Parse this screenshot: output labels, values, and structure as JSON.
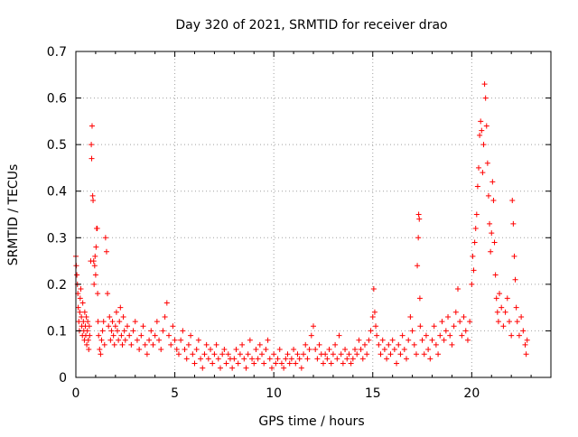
{
  "chart_data": {
    "type": "scatter",
    "title": "Day 320 of 2021, SRMTID for receiver drao",
    "xlabel": "GPS time / hours",
    "ylabel": "SRMTID / TECUs",
    "xlim": [
      0,
      24
    ],
    "ylim": [
      0,
      0.7
    ],
    "x_ticks": [
      0,
      5,
      10,
      15,
      20
    ],
    "x_tick_labels": [
      "0",
      "5",
      "10",
      "15",
      "20"
    ],
    "y_ticks": [
      0,
      0.1,
      0.2,
      0.3,
      0.4,
      0.5,
      0.6,
      0.7
    ],
    "y_tick_labels": [
      "0",
      "0.1",
      "0.2",
      "0.3",
      "0.4",
      "0.5",
      "0.6",
      "0.7"
    ],
    "grid": true,
    "marker": "+",
    "color": "#ff0000",
    "series": [
      {
        "name": "SRMTID",
        "points": [
          [
            0.0,
            0.26
          ],
          [
            0.02,
            0.24
          ],
          [
            0.05,
            0.22
          ],
          [
            0.08,
            0.2
          ],
          [
            0.1,
            0.18
          ],
          [
            0.12,
            0.15
          ],
          [
            0.15,
            0.12
          ],
          [
            0.18,
            0.1
          ],
          [
            0.2,
            0.14
          ],
          [
            0.22,
            0.17
          ],
          [
            0.25,
            0.19
          ],
          [
            0.28,
            0.13
          ],
          [
            0.3,
            0.11
          ],
          [
            0.33,
            0.09
          ],
          [
            0.35,
            0.16
          ],
          [
            0.38,
            0.12
          ],
          [
            0.4,
            0.1
          ],
          [
            0.43,
            0.08
          ],
          [
            0.45,
            0.14
          ],
          [
            0.48,
            0.11
          ],
          [
            0.5,
            0.09
          ],
          [
            0.53,
            0.13
          ],
          [
            0.55,
            0.07
          ],
          [
            0.58,
            0.1
          ],
          [
            0.6,
            0.12
          ],
          [
            0.63,
            0.08
          ],
          [
            0.65,
            0.06
          ],
          [
            0.68,
            0.11
          ],
          [
            0.7,
            0.09
          ],
          [
            0.75,
            0.25
          ],
          [
            0.78,
            0.5
          ],
          [
            0.8,
            0.47
          ],
          [
            0.82,
            0.54
          ],
          [
            0.85,
            0.39
          ],
          [
            0.87,
            0.38
          ],
          [
            0.9,
            0.25
          ],
          [
            0.92,
            0.2
          ],
          [
            0.95,
            0.24
          ],
          [
            0.97,
            0.26
          ],
          [
            1.0,
            0.22
          ],
          [
            1.02,
            0.28
          ],
          [
            1.05,
            0.32
          ],
          [
            1.08,
            0.32
          ],
          [
            1.1,
            0.18
          ],
          [
            1.12,
            0.12
          ],
          [
            1.15,
            0.09
          ],
          [
            1.2,
            0.06
          ],
          [
            1.25,
            0.05
          ],
          [
            1.3,
            0.08
          ],
          [
            1.35,
            0.1
          ],
          [
            1.4,
            0.12
          ],
          [
            1.45,
            0.07
          ],
          [
            1.5,
            0.3
          ],
          [
            1.55,
            0.27
          ],
          [
            1.6,
            0.18
          ],
          [
            1.65,
            0.11
          ],
          [
            1.7,
            0.13
          ],
          [
            1.75,
            0.08
          ],
          [
            1.8,
            0.1
          ],
          [
            1.85,
            0.12
          ],
          [
            1.9,
            0.09
          ],
          [
            1.95,
            0.07
          ],
          [
            2.0,
            0.11
          ],
          [
            2.05,
            0.14
          ],
          [
            2.1,
            0.1
          ],
          [
            2.15,
            0.08
          ],
          [
            2.2,
            0.12
          ],
          [
            2.25,
            0.15
          ],
          [
            2.3,
            0.09
          ],
          [
            2.35,
            0.07
          ],
          [
            2.4,
            0.13
          ],
          [
            2.45,
            0.1
          ],
          [
            2.5,
            0.08
          ],
          [
            2.6,
            0.11
          ],
          [
            2.7,
            0.09
          ],
          [
            2.8,
            0.07
          ],
          [
            2.9,
            0.1
          ],
          [
            3.0,
            0.12
          ],
          [
            3.1,
            0.08
          ],
          [
            3.2,
            0.06
          ],
          [
            3.3,
            0.09
          ],
          [
            3.4,
            0.11
          ],
          [
            3.5,
            0.07
          ],
          [
            3.6,
            0.05
          ],
          [
            3.7,
            0.08
          ],
          [
            3.8,
            0.1
          ],
          [
            3.9,
            0.07
          ],
          [
            4.0,
            0.09
          ],
          [
            4.1,
            0.12
          ],
          [
            4.2,
            0.08
          ],
          [
            4.3,
            0.06
          ],
          [
            4.4,
            0.1
          ],
          [
            4.5,
            0.13
          ],
          [
            4.6,
            0.16
          ],
          [
            4.7,
            0.09
          ],
          [
            4.8,
            0.07
          ],
          [
            4.9,
            0.11
          ],
          [
            5.0,
            0.08
          ],
          [
            5.1,
            0.06
          ],
          [
            5.2,
            0.05
          ],
          [
            5.3,
            0.08
          ],
          [
            5.4,
            0.1
          ],
          [
            5.5,
            0.06
          ],
          [
            5.6,
            0.04
          ],
          [
            5.7,
            0.07
          ],
          [
            5.8,
            0.09
          ],
          [
            5.9,
            0.05
          ],
          [
            6.0,
            0.03
          ],
          [
            6.1,
            0.06
          ],
          [
            6.2,
            0.08
          ],
          [
            6.3,
            0.04
          ],
          [
            6.4,
            0.02
          ],
          [
            6.5,
            0.05
          ],
          [
            6.6,
            0.07
          ],
          [
            6.7,
            0.04
          ],
          [
            6.8,
            0.06
          ],
          [
            6.9,
            0.03
          ],
          [
            7.0,
            0.05
          ],
          [
            7.1,
            0.07
          ],
          [
            7.2,
            0.04
          ],
          [
            7.3,
            0.02
          ],
          [
            7.4,
            0.05
          ],
          [
            7.5,
            0.06
          ],
          [
            7.6,
            0.03
          ],
          [
            7.7,
            0.05
          ],
          [
            7.8,
            0.04
          ],
          [
            7.9,
            0.02
          ],
          [
            8.0,
            0.04
          ],
          [
            8.1,
            0.06
          ],
          [
            8.2,
            0.03
          ],
          [
            8.3,
            0.05
          ],
          [
            8.4,
            0.07
          ],
          [
            8.5,
            0.04
          ],
          [
            8.6,
            0.02
          ],
          [
            8.7,
            0.05
          ],
          [
            8.8,
            0.08
          ],
          [
            8.9,
            0.04
          ],
          [
            9.0,
            0.03
          ],
          [
            9.1,
            0.06
          ],
          [
            9.2,
            0.04
          ],
          [
            9.3,
            0.07
          ],
          [
            9.4,
            0.05
          ],
          [
            9.5,
            0.03
          ],
          [
            9.6,
            0.06
          ],
          [
            9.7,
            0.08
          ],
          [
            9.8,
            0.04
          ],
          [
            9.9,
            0.02
          ],
          [
            10.0,
            0.05
          ],
          [
            10.1,
            0.03
          ],
          [
            10.2,
            0.04
          ],
          [
            10.3,
            0.06
          ],
          [
            10.4,
            0.03
          ],
          [
            10.5,
            0.02
          ],
          [
            10.6,
            0.04
          ],
          [
            10.7,
            0.05
          ],
          [
            10.8,
            0.03
          ],
          [
            10.9,
            0.04
          ],
          [
            11.0,
            0.06
          ],
          [
            11.1,
            0.03
          ],
          [
            11.2,
            0.05
          ],
          [
            11.3,
            0.04
          ],
          [
            11.4,
            0.02
          ],
          [
            11.5,
            0.05
          ],
          [
            11.6,
            0.07
          ],
          [
            11.7,
            0.04
          ],
          [
            11.8,
            0.06
          ],
          [
            11.9,
            0.09
          ],
          [
            12.0,
            0.11
          ],
          [
            12.1,
            0.06
          ],
          [
            12.2,
            0.04
          ],
          [
            12.3,
            0.07
          ],
          [
            12.4,
            0.05
          ],
          [
            12.5,
            0.03
          ],
          [
            12.6,
            0.05
          ],
          [
            12.7,
            0.04
          ],
          [
            12.8,
            0.06
          ],
          [
            12.9,
            0.03
          ],
          [
            13.0,
            0.05
          ],
          [
            13.1,
            0.07
          ],
          [
            13.2,
            0.04
          ],
          [
            13.3,
            0.09
          ],
          [
            13.4,
            0.05
          ],
          [
            13.5,
            0.03
          ],
          [
            13.6,
            0.06
          ],
          [
            13.7,
            0.04
          ],
          [
            13.8,
            0.05
          ],
          [
            13.9,
            0.03
          ],
          [
            14.0,
            0.04
          ],
          [
            14.1,
            0.06
          ],
          [
            14.2,
            0.05
          ],
          [
            14.3,
            0.08
          ],
          [
            14.4,
            0.06
          ],
          [
            14.5,
            0.04
          ],
          [
            14.6,
            0.07
          ],
          [
            14.7,
            0.05
          ],
          [
            14.8,
            0.08
          ],
          [
            14.9,
            0.1
          ],
          [
            15.0,
            0.13
          ],
          [
            15.05,
            0.19
          ],
          [
            15.1,
            0.14
          ],
          [
            15.15,
            0.11
          ],
          [
            15.2,
            0.09
          ],
          [
            15.3,
            0.07
          ],
          [
            15.4,
            0.05
          ],
          [
            15.5,
            0.08
          ],
          [
            15.6,
            0.06
          ],
          [
            15.7,
            0.04
          ],
          [
            15.8,
            0.07
          ],
          [
            15.9,
            0.05
          ],
          [
            16.0,
            0.08
          ],
          [
            16.1,
            0.06
          ],
          [
            16.2,
            0.03
          ],
          [
            16.3,
            0.07
          ],
          [
            16.4,
            0.05
          ],
          [
            16.5,
            0.09
          ],
          [
            16.6,
            0.06
          ],
          [
            16.7,
            0.04
          ],
          [
            16.8,
            0.08
          ],
          [
            16.9,
            0.13
          ],
          [
            17.0,
            0.1
          ],
          [
            17.1,
            0.07
          ],
          [
            17.2,
            0.05
          ],
          [
            17.25,
            0.24
          ],
          [
            17.3,
            0.3
          ],
          [
            17.32,
            0.35
          ],
          [
            17.35,
            0.34
          ],
          [
            17.38,
            0.17
          ],
          [
            17.4,
            0.11
          ],
          [
            17.5,
            0.08
          ],
          [
            17.6,
            0.05
          ],
          [
            17.7,
            0.09
          ],
          [
            17.8,
            0.06
          ],
          [
            17.9,
            0.04
          ],
          [
            18.0,
            0.08
          ],
          [
            18.1,
            0.11
          ],
          [
            18.2,
            0.07
          ],
          [
            18.3,
            0.05
          ],
          [
            18.4,
            0.09
          ],
          [
            18.5,
            0.12
          ],
          [
            18.6,
            0.08
          ],
          [
            18.7,
            0.1
          ],
          [
            18.8,
            0.13
          ],
          [
            18.9,
            0.09
          ],
          [
            19.0,
            0.07
          ],
          [
            19.1,
            0.11
          ],
          [
            19.2,
            0.14
          ],
          [
            19.3,
            0.19
          ],
          [
            19.4,
            0.12
          ],
          [
            19.5,
            0.09
          ],
          [
            19.6,
            0.13
          ],
          [
            19.7,
            0.1
          ],
          [
            19.8,
            0.08
          ],
          [
            19.9,
            0.12
          ],
          [
            20.0,
            0.2
          ],
          [
            20.05,
            0.26
          ],
          [
            20.1,
            0.23
          ],
          [
            20.15,
            0.29
          ],
          [
            20.2,
            0.32
          ],
          [
            20.25,
            0.35
          ],
          [
            20.3,
            0.41
          ],
          [
            20.35,
            0.45
          ],
          [
            20.4,
            0.52
          ],
          [
            20.45,
            0.55
          ],
          [
            20.5,
            0.53
          ],
          [
            20.55,
            0.44
          ],
          [
            20.6,
            0.5
          ],
          [
            20.65,
            0.63
          ],
          [
            20.7,
            0.6
          ],
          [
            20.75,
            0.54
          ],
          [
            20.8,
            0.46
          ],
          [
            20.85,
            0.39
          ],
          [
            20.9,
            0.33
          ],
          [
            20.95,
            0.27
          ],
          [
            21.0,
            0.31
          ],
          [
            21.05,
            0.42
          ],
          [
            21.1,
            0.38
          ],
          [
            21.15,
            0.29
          ],
          [
            21.2,
            0.22
          ],
          [
            21.25,
            0.17
          ],
          [
            21.3,
            0.14
          ],
          [
            21.35,
            0.12
          ],
          [
            21.4,
            0.18
          ],
          [
            21.5,
            0.15
          ],
          [
            21.6,
            0.11
          ],
          [
            21.7,
            0.14
          ],
          [
            21.8,
            0.17
          ],
          [
            21.9,
            0.12
          ],
          [
            22.0,
            0.09
          ],
          [
            22.05,
            0.38
          ],
          [
            22.1,
            0.33
          ],
          [
            22.15,
            0.26
          ],
          [
            22.2,
            0.21
          ],
          [
            22.25,
            0.15
          ],
          [
            22.3,
            0.12
          ],
          [
            22.4,
            0.09
          ],
          [
            22.5,
            0.13
          ],
          [
            22.6,
            0.1
          ],
          [
            22.7,
            0.07
          ],
          [
            22.75,
            0.05
          ],
          [
            22.8,
            0.08
          ]
        ]
      }
    ]
  }
}
